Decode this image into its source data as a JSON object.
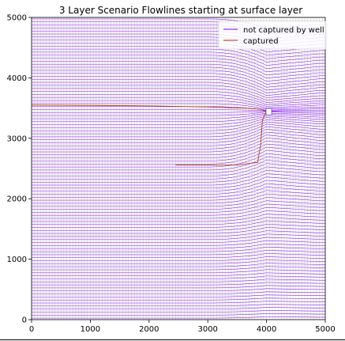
{
  "chart_data": {
    "type": "line",
    "title": "3 Layer Scenario Flowlines starting at surface layer",
    "xlabel": "",
    "ylabel": "",
    "xlim": [
      0,
      5000
    ],
    "ylim": [
      0,
      5000
    ],
    "x_ticks": [
      "0",
      "1000",
      "2000",
      "3000",
      "4000",
      "5000"
    ],
    "y_ticks": [
      "0",
      "1000",
      "2000",
      "3000",
      "4000",
      "5000"
    ],
    "grid": true,
    "legend_position": "top-right",
    "well": {
      "x": 4000,
      "y": 3450
    },
    "series": [
      {
        "name": "not captured by well",
        "color": "#8000ff",
        "style": "solid"
      },
      {
        "name": "captured",
        "color": "#b03000",
        "style": "solid"
      }
    ],
    "captured_paths": [
      [
        [
          0,
          3550
        ],
        [
          1000,
          3545
        ],
        [
          2000,
          3535
        ],
        [
          3000,
          3520
        ],
        [
          3600,
          3500
        ],
        [
          3900,
          3480
        ],
        [
          4000,
          3450
        ]
      ],
      [
        [
          2450,
          2560
        ],
        [
          3000,
          2560
        ],
        [
          3500,
          2560
        ],
        [
          3850,
          2600
        ],
        [
          3900,
          2900
        ],
        [
          3930,
          3300
        ],
        [
          4000,
          3450
        ]
      ]
    ]
  }
}
